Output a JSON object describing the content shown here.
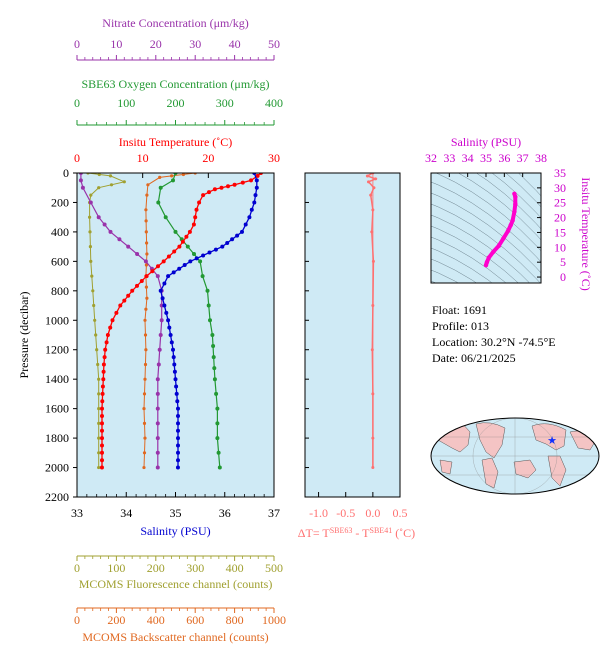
{
  "colors": {
    "plot_bg": "#cfeaf5",
    "temperature": "#ff0000",
    "salinity": "#0000d0",
    "nitrate": "#9933aa",
    "oxygen": "#229933",
    "fluorescence": "#a0a030",
    "backscatter": "#e06820",
    "delta_t": "#ff7070",
    "ts_curve": "#ff00cc",
    "ts_axis": "#cc00cc"
  },
  "info": {
    "float": "Float:  1691",
    "profile": "Profile:  013",
    "location": "Location:  30.2°N  -74.5°E",
    "date": "Date:  06/21/2025"
  },
  "chart_data": [
    {
      "type": "line",
      "name": "main-profile",
      "ylabel": "Pressure (decibar)",
      "ylim": [
        2200,
        0
      ],
      "yticks": [
        0,
        200,
        400,
        600,
        800,
        1000,
        1200,
        1400,
        1600,
        1800,
        2000,
        2200
      ],
      "axes": {
        "nitrate": {
          "label": "Nitrate Concentration (μm/kg)",
          "range": [
            0,
            50
          ],
          "ticks": [
            0,
            10,
            20,
            30,
            40,
            50
          ]
        },
        "oxygen": {
          "label": "SBE63 Oxygen Concentration (μm/kg)",
          "range": [
            0,
            400
          ],
          "ticks": [
            0,
            100,
            200,
            300,
            400
          ]
        },
        "temperature": {
          "label": "Insitu Temperature (˚C)",
          "range": [
            0,
            30
          ],
          "ticks": [
            0,
            10,
            20,
            30
          ]
        },
        "salinity": {
          "label": "Salinity (PSU)",
          "range": [
            33,
            37
          ],
          "ticks": [
            33,
            34,
            35,
            36,
            37
          ]
        },
        "fluorescence": {
          "label": "MCOMS Fluorescence channel (counts)",
          "range": [
            0,
            500
          ],
          "ticks": [
            0,
            100,
            200,
            300,
            400,
            500
          ]
        },
        "backscatter": {
          "label": "MCOMS Backscatter channel (counts)",
          "range": [
            0,
            1000
          ],
          "ticks": [
            0,
            200,
            400,
            600,
            800,
            1000
          ]
        }
      },
      "series": {
        "temperature": {
          "x": [
            28.0,
            27.5,
            26.5,
            24.0,
            21.0,
            19.2,
            18.6,
            18.2,
            18.0,
            17.8,
            17.2,
            15.6,
            13.2,
            10.6,
            8.4,
            6.6,
            5.4,
            4.7,
            4.3,
            4.1,
            4.0,
            3.9,
            3.8,
            3.8,
            3.8
          ],
          "p": [
            0,
            20,
            50,
            80,
            110,
            150,
            200,
            250,
            300,
            350,
            400,
            500,
            600,
            700,
            800,
            900,
            1000,
            1100,
            1200,
            1300,
            1400,
            1500,
            1600,
            1800,
            2000
          ]
        },
        "salinity": {
          "x": [
            36.6,
            36.65,
            36.65,
            36.6,
            36.5,
            36.35,
            35.95,
            35.3,
            34.85,
            34.7,
            34.85,
            34.95,
            35.0,
            35.05,
            35.05,
            35.05
          ],
          "p": [
            0,
            50,
            100,
            200,
            300,
            400,
            500,
            600,
            700,
            800,
            1000,
            1200,
            1400,
            1600,
            1800,
            2000
          ]
        },
        "nitrate": {
          "x": [
            1.0,
            1.0,
            1.5,
            3.5,
            5.5,
            8.5,
            13.0,
            17.5,
            20.5,
            21.5,
            21.5,
            21.0,
            20.5,
            20.5,
            20.5,
            20.5
          ],
          "p": [
            0,
            50,
            100,
            200,
            300,
            400,
            500,
            600,
            700,
            800,
            1000,
            1200,
            1400,
            1600,
            1800,
            2000
          ]
        },
        "oxygen": {
          "x": [
            200,
            195,
            170,
            165,
            180,
            200,
            225,
            250,
            255,
            265,
            270,
            275,
            280,
            285,
            285,
            290
          ],
          "p": [
            0,
            50,
            100,
            200,
            300,
            400,
            500,
            600,
            700,
            800,
            1000,
            1100,
            1400,
            1600,
            1800,
            2000
          ]
        },
        "fluorescence": {
          "x": [
            28,
            85,
            120,
            55,
            35,
            32,
            32,
            33,
            35,
            40,
            45,
            50,
            55,
            55,
            55
          ],
          "p": [
            0,
            20,
            60,
            100,
            150,
            200,
            300,
            400,
            600,
            800,
            1000,
            1200,
            1400,
            1600,
            2000
          ]
        },
        "backscatter": {
          "x": [
            600,
            420,
            360,
            355,
            350,
            352,
            355,
            350,
            355,
            345,
            350,
            345,
            340,
            345,
            340
          ],
          "p": [
            0,
            30,
            80,
            150,
            250,
            400,
            550,
            700,
            850,
            1000,
            1200,
            1400,
            1600,
            1800,
            2000
          ]
        }
      }
    },
    {
      "type": "line",
      "name": "delta-t",
      "xlabel": "ΔT= T^SBE63 - T^SBE41 (˚C)",
      "xlim": [
        -1.25,
        0.5
      ],
      "xticks": [
        -1.0,
        -0.5,
        0.0,
        0.5
      ],
      "xticklabels": [
        "-1.0",
        "-0.5",
        "0.0",
        "0.5"
      ],
      "ylim": [
        2200,
        0
      ],
      "series": {
        "x": [
          0.0,
          -0.1,
          0.05,
          -0.08,
          0.02,
          -0.04,
          0.0,
          -0.02,
          0.01,
          0.0,
          -0.01,
          0.0,
          0.0,
          0.0
        ],
        "p": [
          0,
          20,
          40,
          60,
          100,
          150,
          250,
          400,
          600,
          900,
          1200,
          1500,
          1800,
          2000
        ]
      }
    },
    {
      "type": "scatter",
      "name": "ts-diagram",
      "xlabel": "Salinity (PSU)",
      "ylabel": "Insitu Temperature (˚C)",
      "xlim": [
        32,
        38
      ],
      "ylim": [
        -2,
        35
      ],
      "xticks": [
        32,
        33,
        34,
        35,
        36,
        37,
        38
      ],
      "yticks": [
        0,
        5,
        10,
        15,
        20,
        25,
        30,
        35
      ],
      "series": {
        "s": [
          35.0,
          35.05,
          35.15,
          35.4,
          35.7,
          35.95,
          36.2,
          36.35,
          36.45,
          36.55,
          36.6,
          36.6,
          36.55
        ],
        "t": [
          4.0,
          5.0,
          6.5,
          8.5,
          10.5,
          13.0,
          15.5,
          17.5,
          19.0,
          22.0,
          24.5,
          27.0,
          28.0
        ]
      }
    }
  ]
}
